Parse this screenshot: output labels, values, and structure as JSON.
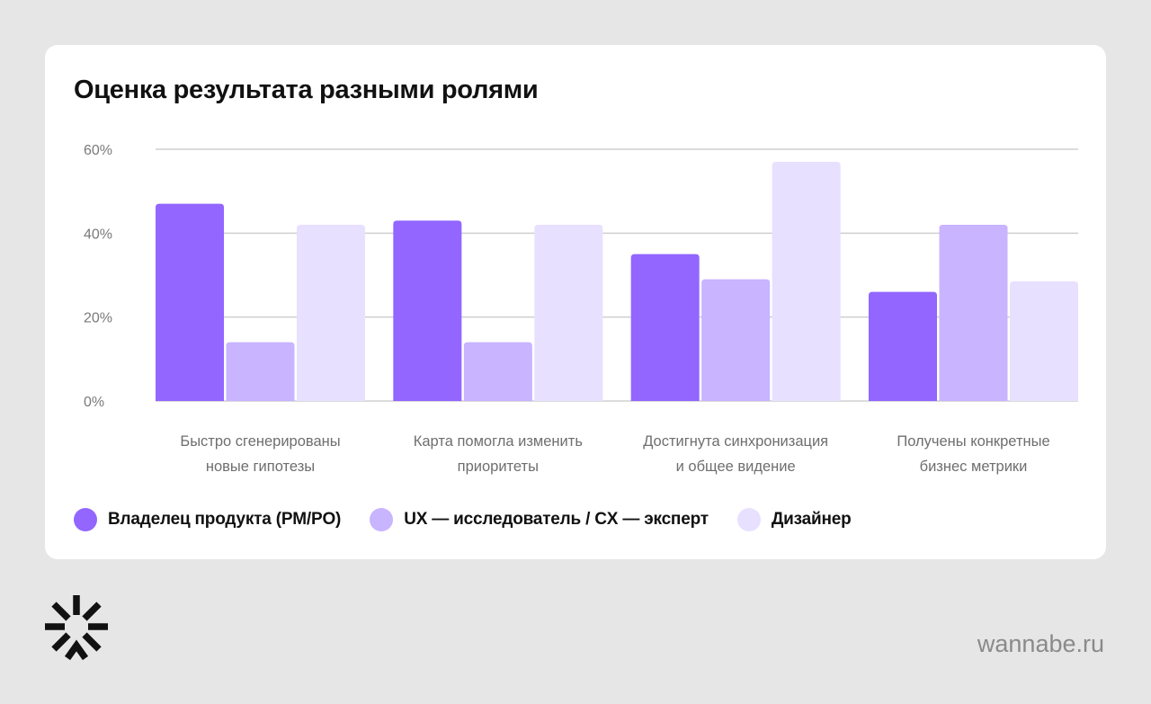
{
  "site_label": "wannabe.ru",
  "logo_icon": "asterisk-logo-icon",
  "chart_data": {
    "type": "bar",
    "title": "Оценка результата разными ролями",
    "xlabel": "",
    "ylabel": "",
    "ylim": [
      0,
      60
    ],
    "y_ticks": [
      0,
      20,
      40,
      60
    ],
    "y_tick_labels": [
      "0%",
      "20%",
      "40%",
      "60%"
    ],
    "grid": true,
    "legend_position": "bottom-left",
    "categories": [
      [
        "Быстро сгенерированы",
        "новые гипотезы"
      ],
      [
        "Карта помогла изменить",
        "приоритеты"
      ],
      [
        "Достигнута синхронизация",
        "и общее видение"
      ],
      [
        "Получены конкретные",
        "бизнес метрики"
      ]
    ],
    "series": [
      {
        "name": "Владелец продукта (PM/PO)",
        "color": "#9266ff",
        "values": [
          47,
          43,
          35,
          26
        ]
      },
      {
        "name": "UX — исследователь / CX — эксперт",
        "color": "#c8b4ff",
        "values": [
          14,
          14,
          29,
          42
        ]
      },
      {
        "name": "Дизайнер",
        "color": "#e8e0ff",
        "values": [
          42,
          42,
          57,
          28.5
        ]
      }
    ]
  }
}
